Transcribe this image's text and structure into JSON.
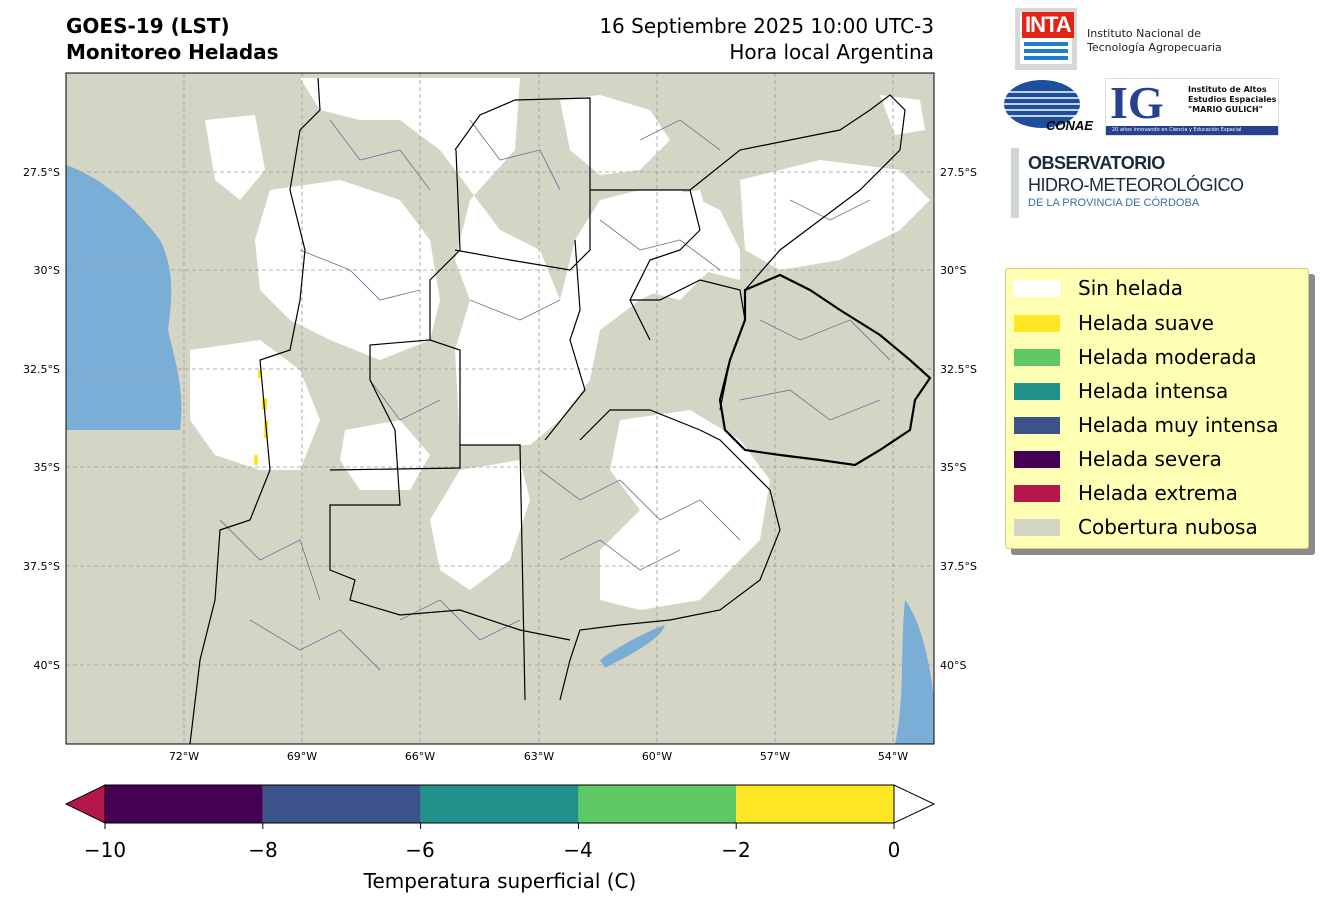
{
  "header": {
    "title_line1": "GOES-19 (LST)",
    "title_line2": "Monitoreo Heladas",
    "date_line1": "16 Septiembre 2025 10:00 UTC-3",
    "date_line2": "Hora local Argentina"
  },
  "map": {
    "lat_labels": [
      "27.5°S",
      "30°S",
      "32.5°S",
      "35°S",
      "37.5°S",
      "40°S"
    ],
    "lon_labels": [
      "72°W",
      "69°W",
      "66°W",
      "63°W",
      "60°W",
      "57°W",
      "54°W"
    ],
    "colors": {
      "cloud": "#d5d5c6",
      "clear": "#ffffff",
      "ocean": "#7aaed6",
      "frost_mild": "#fde725",
      "boundary": "#000000",
      "department": "#6b7f99"
    }
  },
  "logos": {
    "inta_mark": "INTA",
    "inta_org_line1": "Instituto Nacional de",
    "inta_org_line2": "Tecnología Agropecuaria",
    "conae": "CONAE",
    "ig_letters": "IG",
    "ig_line1": "Instituto de Altos",
    "ig_line2": "Estudios Espaciales",
    "ig_line3": "\"MARIO GULICH\"",
    "ig_strip": "20 años innovando en Ciencia y Educación Espacial",
    "obs_line1": "OBSERVATORIO",
    "obs_line2": "HIDRO-METEOROLÓGICO",
    "obs_line3": "DE LA PROVINCIA DE CÓRDOBA"
  },
  "legend": {
    "items": [
      {
        "label": "Sin helada",
        "color": "#ffffff"
      },
      {
        "label": "Helada suave",
        "color": "#fde725"
      },
      {
        "label": "Helada moderada",
        "color": "#5ec962"
      },
      {
        "label": "Helada intensa",
        "color": "#21918c"
      },
      {
        "label": "Helada muy intensa",
        "color": "#3b528b"
      },
      {
        "label": "Helada severa",
        "color": "#440154"
      },
      {
        "label": "Helada extrema",
        "color": "#b5174c"
      },
      {
        "label": "Cobertura nubosa",
        "color": "#d5d5c6"
      }
    ]
  },
  "colorbar": {
    "label": "Temperatura superficial (C)",
    "ticks": [
      "−10",
      "−8",
      "−6",
      "−4",
      "−2",
      "0"
    ],
    "segments": [
      {
        "from": -10,
        "to": -8,
        "color": "#440154"
      },
      {
        "from": -8,
        "to": -6,
        "color": "#3b528b"
      },
      {
        "from": -6,
        "to": -4,
        "color": "#21918c"
      },
      {
        "from": -4,
        "to": -2,
        "color": "#5ec962"
      },
      {
        "from": -2,
        "to": 0,
        "color": "#fde725"
      }
    ],
    "under_color": "#b5174c",
    "over_color": "#ffffff"
  }
}
